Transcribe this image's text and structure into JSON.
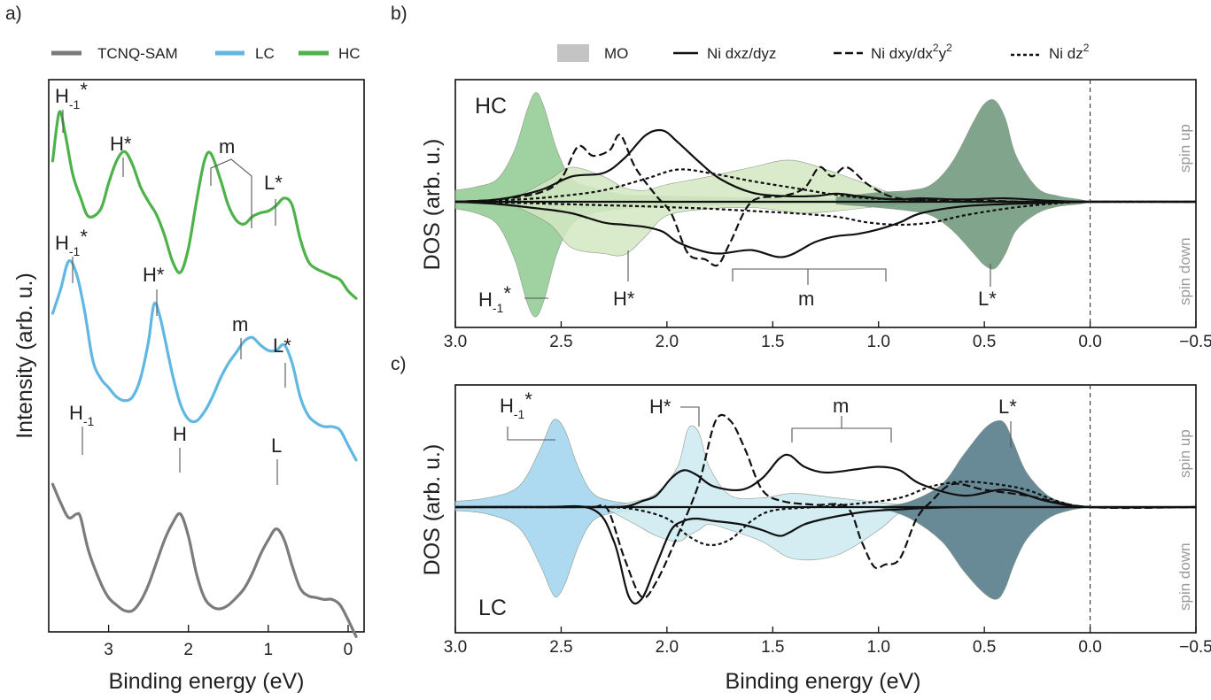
{
  "panel_labels": {
    "a": "a)",
    "b": "b)",
    "c": "c)"
  },
  "legend_a": [
    {
      "label": "TCNQ-SAM",
      "color": "#7b7b7b"
    },
    {
      "label": "LC",
      "color": "#5fb7e2"
    },
    {
      "label": "HC",
      "color": "#4db24a"
    }
  ],
  "legend_bc": {
    "mo": "MO",
    "dxz": "Ni dxz/dyz",
    "dxy_prefix": "Ni dxy/dx",
    "dxy_mid": "y",
    "dxy_sup": "2",
    "dz_prefix": "Ni dz",
    "dz_sup": "2"
  },
  "axes": {
    "xlabel": "Binding energy (eV)",
    "ylabel_a": "Intensity (arb. u.)",
    "ylabel_bc": "DOS (arb. u.)",
    "xticks_a": [
      "3",
      "2",
      "1",
      "0"
    ],
    "xticks_bc": [
      "3.0",
      "2.5",
      "2.0",
      "1.5",
      "1.0",
      "0.5",
      "0.0",
      "−0.5"
    ],
    "spin_up": "spin up",
    "spin_down": "spin down",
    "hc": "HC",
    "lc": "LC"
  },
  "peak_labels": {
    "h1_star_base": "H",
    "h1_star_sub": "-1",
    "h1_star_sup": "*",
    "h_star": "H*",
    "m": "m",
    "l_star": "L*",
    "h1_base": "H",
    "h1_sub": "-1",
    "h": "H",
    "l": "L"
  },
  "colors": {
    "hc": "#4db24a",
    "lc": "#5fb7e2",
    "sam": "#7b7b7b",
    "hc_fill1": "#8fc98f",
    "hc_fill2": "#d3e8c2",
    "hc_fill3": "#6b9478",
    "lc_fill1": "#9fd3ef",
    "lc_fill2": "#cdeaf1",
    "lc_fill3": "#4d7585"
  },
  "chart_data": [
    {
      "type": "line",
      "title": "",
      "xlabel": "Binding energy (eV)",
      "ylabel": "Intensity (arb. u.)",
      "xlim": [
        3.75,
        -0.2
      ],
      "x_reversed": true,
      "xticks": [
        3,
        2,
        1,
        0
      ],
      "legend": "top",
      "series": [
        {
          "name": "HC",
          "color": "#4db24a",
          "offset": 1.8,
          "x": [
            3.7,
            3.62,
            3.55,
            3.45,
            3.35,
            3.25,
            3.1,
            3.0,
            2.9,
            2.8,
            2.7,
            2.6,
            2.5,
            2.4,
            2.3,
            2.2,
            2.1,
            2.0,
            1.9,
            1.8,
            1.72,
            1.6,
            1.5,
            1.4,
            1.3,
            1.2,
            1.1,
            1.0,
            0.9,
            0.8,
            0.7,
            0.6,
            0.5,
            0.4,
            0.3,
            0.2,
            0.1,
            0.0,
            -0.1
          ],
          "y": [
            0.62,
            0.88,
            0.78,
            0.55,
            0.42,
            0.32,
            0.36,
            0.5,
            0.62,
            0.67,
            0.6,
            0.48,
            0.4,
            0.33,
            0.22,
            0.08,
            0.02,
            0.15,
            0.4,
            0.62,
            0.66,
            0.52,
            0.38,
            0.3,
            0.28,
            0.32,
            0.34,
            0.35,
            0.38,
            0.42,
            0.38,
            0.2,
            0.08,
            0.04,
            0.02,
            0.0,
            -0.02,
            -0.08,
            -0.12
          ]
        },
        {
          "name": "LC",
          "color": "#5fb7e2",
          "offset": 0.95,
          "x": [
            3.7,
            3.6,
            3.5,
            3.4,
            3.3,
            3.2,
            3.1,
            3.0,
            2.9,
            2.8,
            2.7,
            2.6,
            2.5,
            2.43,
            2.35,
            2.2,
            2.1,
            2.0,
            1.9,
            1.8,
            1.7,
            1.6,
            1.5,
            1.4,
            1.3,
            1.2,
            1.1,
            1.0,
            0.9,
            0.8,
            0.7,
            0.6,
            0.5,
            0.4,
            0.3,
            0.2,
            0.1,
            0.0,
            -0.1
          ],
          "y": [
            0.65,
            0.78,
            0.93,
            0.86,
            0.66,
            0.4,
            0.3,
            0.25,
            0.2,
            0.18,
            0.2,
            0.3,
            0.5,
            0.7,
            0.62,
            0.32,
            0.16,
            0.08,
            0.07,
            0.12,
            0.2,
            0.3,
            0.38,
            0.44,
            0.5,
            0.52,
            0.48,
            0.45,
            0.45,
            0.48,
            0.38,
            0.2,
            0.1,
            0.06,
            0.04,
            0.04,
            0.02,
            -0.06,
            -0.14
          ]
        },
        {
          "name": "TCNQ-SAM",
          "color": "#7b7b7b",
          "offset": 0.0,
          "x": [
            3.7,
            3.6,
            3.5,
            3.4,
            3.35,
            3.25,
            3.1,
            3.0,
            2.9,
            2.8,
            2.7,
            2.6,
            2.5,
            2.4,
            2.3,
            2.2,
            2.1,
            2.0,
            1.9,
            1.8,
            1.7,
            1.6,
            1.5,
            1.4,
            1.3,
            1.2,
            1.1,
            1.0,
            0.9,
            0.8,
            0.7,
            0.6,
            0.5,
            0.4,
            0.3,
            0.2,
            0.1,
            0.0,
            -0.1
          ],
          "y": [
            0.68,
            0.58,
            0.5,
            0.52,
            0.5,
            0.32,
            0.15,
            0.07,
            0.03,
            0.0,
            0.0,
            0.05,
            0.14,
            0.26,
            0.38,
            0.47,
            0.52,
            0.4,
            0.2,
            0.07,
            0.02,
            0.01,
            0.03,
            0.07,
            0.12,
            0.2,
            0.3,
            0.38,
            0.44,
            0.38,
            0.24,
            0.12,
            0.08,
            0.07,
            0.06,
            0.06,
            0.03,
            -0.05,
            -0.14
          ]
        }
      ]
    },
    {
      "type": "area",
      "panel": "HC",
      "xlabel": "Binding energy (eV)",
      "ylabel": "DOS (arb. u.)",
      "xlim": [
        3.0,
        -0.5
      ],
      "x_reversed": true,
      "ylim": [
        -1.0,
        1.0
      ],
      "xticks": [
        3.0,
        2.5,
        2.0,
        1.5,
        1.0,
        0.5,
        0.0,
        -0.5
      ],
      "vline_x": 0.0,
      "series": [
        {
          "name": "MO",
          "color": "#8fc98f",
          "x": [
            3.0,
            2.9,
            2.8,
            2.72,
            2.66,
            2.62,
            2.58,
            2.52,
            2.45,
            2.35,
            2.2,
            2.0,
            1.8,
            1.5,
            1.0,
            0.8
          ],
          "y_up": [
            0.1,
            0.13,
            0.2,
            0.45,
            0.8,
            0.95,
            0.82,
            0.45,
            0.2,
            0.12,
            0.06,
            0.05,
            0.04,
            0.03,
            0.02,
            0.0
          ],
          "y_down": [
            -0.06,
            -0.1,
            -0.2,
            -0.5,
            -0.88,
            -1.0,
            -0.85,
            -0.45,
            -0.2,
            -0.1,
            -0.06,
            -0.04,
            -0.03,
            -0.02,
            -0.01,
            0.0
          ]
        },
        {
          "name": "MO",
          "color": "#d3e8c2",
          "x": [
            2.7,
            2.55,
            2.45,
            2.3,
            2.2,
            2.1,
            2.0,
            1.8,
            1.6,
            1.45,
            1.35,
            1.2,
            1.05,
            0.9,
            0.75
          ],
          "y_up": [
            0.05,
            0.2,
            0.3,
            0.22,
            0.12,
            0.1,
            0.15,
            0.22,
            0.3,
            0.36,
            0.34,
            0.25,
            0.15,
            0.05,
            0.0
          ],
          "y_down": [
            -0.05,
            -0.2,
            -0.4,
            -0.45,
            -0.46,
            -0.3,
            -0.12,
            -0.06,
            -0.05,
            -0.08,
            -0.1,
            -0.08,
            -0.05,
            -0.02,
            0.0
          ]
        },
        {
          "name": "MO",
          "color": "#6b9478",
          "x": [
            1.2,
            1.0,
            0.85,
            0.75,
            0.65,
            0.55,
            0.5,
            0.45,
            0.4,
            0.35,
            0.25,
            0.15,
            0.05,
            0.0
          ],
          "y_up": [
            0.04,
            0.08,
            0.1,
            0.15,
            0.35,
            0.7,
            0.85,
            0.88,
            0.72,
            0.4,
            0.12,
            0.05,
            0.02,
            0.0
          ],
          "y_down": [
            -0.02,
            -0.05,
            -0.08,
            -0.12,
            -0.25,
            -0.45,
            -0.55,
            -0.58,
            -0.45,
            -0.25,
            -0.1,
            -0.04,
            -0.02,
            0.0
          ]
        },
        {
          "name": "Ni dxz/dyz",
          "style": "solid",
          "x": [
            3.0,
            2.8,
            2.6,
            2.45,
            2.3,
            2.2,
            2.1,
            2.02,
            1.95,
            1.85,
            1.75,
            1.6,
            1.45,
            1.3,
            1.2,
            1.1,
            1.0,
            0.9,
            0.8,
            0.6,
            0.4,
            0.2,
            0.0,
            -0.5
          ],
          "y_up": [
            0.0,
            0.02,
            0.1,
            0.22,
            0.25,
            0.38,
            0.58,
            0.62,
            0.52,
            0.35,
            0.2,
            0.08,
            0.05,
            0.05,
            0.07,
            0.05,
            0.03,
            0.02,
            0.03,
            0.02,
            0.03,
            0.01,
            0.0,
            0.0
          ],
          "y_down": [
            0.0,
            -0.02,
            -0.06,
            -0.1,
            -0.18,
            -0.2,
            -0.22,
            -0.26,
            -0.35,
            -0.42,
            -0.45,
            -0.42,
            -0.48,
            -0.35,
            -0.3,
            -0.28,
            -0.24,
            -0.18,
            -0.1,
            -0.04,
            -0.02,
            -0.01,
            0.0,
            0.0
          ]
        },
        {
          "name": "Ni dxy/dx2y2",
          "style": "dashed",
          "x": [
            3.0,
            2.8,
            2.6,
            2.5,
            2.42,
            2.35,
            2.27,
            2.22,
            2.15,
            2.05,
            1.98,
            1.9,
            1.82,
            1.76,
            1.7,
            1.6,
            1.45,
            1.35,
            1.28,
            1.22,
            1.15,
            1.05,
            0.95,
            0.85,
            0.7,
            0.5,
            0.3,
            0.0,
            -0.5
          ],
          "y_up": [
            0.0,
            0.02,
            0.08,
            0.2,
            0.48,
            0.4,
            0.45,
            0.58,
            0.3,
            0.05,
            -0.1,
            -0.45,
            -0.5,
            -0.55,
            -0.35,
            0.0,
            0.05,
            0.12,
            0.3,
            0.22,
            0.3,
            0.15,
            0.05,
            0.02,
            0.01,
            0.01,
            0.0,
            0.0,
            0.0
          ],
          "y_down": []
        },
        {
          "name": "Ni dz2",
          "style": "dotted",
          "x": [
            3.0,
            2.7,
            2.5,
            2.3,
            2.1,
            1.95,
            1.8,
            1.6,
            1.4,
            1.2,
            1.05,
            0.9,
            0.75,
            0.6,
            0.4,
            0.2,
            0.0,
            -0.5
          ],
          "y_up": [
            0.0,
            0.02,
            0.05,
            0.1,
            0.2,
            0.28,
            0.25,
            0.18,
            0.12,
            0.06,
            0.03,
            0.02,
            0.01,
            0.0,
            0.0,
            0.0,
            0.0,
            0.0
          ],
          "y_down": [
            0.0,
            -0.01,
            -0.02,
            -0.03,
            -0.04,
            -0.05,
            -0.06,
            -0.08,
            -0.1,
            -0.13,
            -0.18,
            -0.2,
            -0.18,
            -0.12,
            -0.06,
            -0.02,
            0.0,
            0.0
          ]
        }
      ]
    },
    {
      "type": "area",
      "panel": "LC",
      "xlabel": "Binding energy (eV)",
      "ylabel": "DOS (arb. u.)",
      "xlim": [
        3.0,
        -0.5
      ],
      "x_reversed": true,
      "ylim": [
        -1.0,
        1.0
      ],
      "xticks": [
        3.0,
        2.5,
        2.0,
        1.5,
        1.0,
        0.5,
        0.0,
        -0.5
      ],
      "vline_x": 0.0,
      "series": [
        {
          "name": "MO",
          "color": "#9fd3ef",
          "x": [
            3.0,
            2.85,
            2.7,
            2.6,
            2.55,
            2.52,
            2.48,
            2.42,
            2.35,
            2.25,
            2.1,
            2.0
          ],
          "y_up": [
            0.05,
            0.08,
            0.18,
            0.5,
            0.72,
            0.76,
            0.66,
            0.35,
            0.12,
            0.05,
            0.02,
            0.0
          ],
          "y_down": [
            -0.03,
            -0.06,
            -0.18,
            -0.5,
            -0.72,
            -0.78,
            -0.66,
            -0.35,
            -0.12,
            -0.05,
            -0.02,
            0.0
          ]
        },
        {
          "name": "MO",
          "color": "#cdeaf1",
          "x": [
            2.3,
            2.15,
            2.05,
            1.95,
            1.9,
            1.85,
            1.8,
            1.7,
            1.55,
            1.4,
            1.2,
            1.0,
            0.9,
            0.8
          ],
          "y_up": [
            0.0,
            0.05,
            0.12,
            0.35,
            0.68,
            0.65,
            0.35,
            0.1,
            0.08,
            0.12,
            0.08,
            0.04,
            0.02,
            0.0
          ],
          "y_down": [
            0.0,
            -0.15,
            -0.25,
            -0.3,
            -0.25,
            -0.2,
            -0.15,
            -0.2,
            -0.3,
            -0.45,
            -0.42,
            -0.2,
            -0.05,
            0.0
          ]
        },
        {
          "name": "MO",
          "color": "#4d7585",
          "x": [
            1.0,
            0.85,
            0.7,
            0.6,
            0.5,
            0.44,
            0.4,
            0.36,
            0.3,
            0.2,
            0.1,
            0.0
          ],
          "y_up": [
            0.0,
            0.05,
            0.2,
            0.45,
            0.68,
            0.75,
            0.72,
            0.55,
            0.3,
            0.1,
            0.03,
            0.0
          ],
          "y_down": [
            0.0,
            -0.1,
            -0.3,
            -0.55,
            -0.75,
            -0.8,
            -0.7,
            -0.5,
            -0.28,
            -0.1,
            -0.03,
            0.0
          ]
        },
        {
          "name": "Ni dxz/dyz",
          "style": "solid",
          "x": [
            3.0,
            2.6,
            2.35,
            2.25,
            2.18,
            2.12,
            2.05,
            1.98,
            1.92,
            1.86,
            1.78,
            1.65,
            1.55,
            1.47,
            1.42,
            1.35,
            1.25,
            1.1,
            1.0,
            0.9,
            0.8,
            0.6,
            0.4,
            0.2,
            0.0,
            -0.5
          ],
          "y_up": [
            0.0,
            0.0,
            0.0,
            0.0,
            0.01,
            0.05,
            0.1,
            0.25,
            0.32,
            0.28,
            0.18,
            0.15,
            0.25,
            0.42,
            0.45,
            0.35,
            0.3,
            0.33,
            0.35,
            0.32,
            0.2,
            0.1,
            0.15,
            0.05,
            0.0,
            0.0
          ],
          "y_down": [
            0.0,
            0.0,
            -0.02,
            -0.3,
            -0.78,
            -0.8,
            -0.5,
            -0.2,
            -0.12,
            -0.1,
            -0.12,
            -0.15,
            -0.2,
            -0.25,
            -0.22,
            -0.15,
            -0.1,
            -0.05,
            -0.03,
            -0.02,
            -0.01,
            0.0,
            0.0,
            0.0,
            0.0,
            0.0
          ]
        },
        {
          "name": "Ni dxy/dx2y2",
          "style": "dashed",
          "x": [
            3.0,
            2.5,
            2.35,
            2.28,
            2.2,
            2.12,
            2.05,
            1.95,
            1.85,
            1.77,
            1.7,
            1.63,
            1.55,
            1.45,
            1.3,
            1.15,
            1.08,
            1.02,
            0.97,
            0.9,
            0.82,
            0.75,
            0.65,
            0.5,
            0.3,
            0.0,
            -0.5
          ],
          "y_up": [
            0.0,
            0.0,
            0.0,
            -0.02,
            -0.45,
            -0.78,
            -0.65,
            -0.25,
            0.2,
            0.75,
            0.75,
            0.5,
            0.15,
            0.05,
            0.02,
            0.0,
            -0.3,
            -0.52,
            -0.5,
            -0.45,
            -0.1,
            0.05,
            0.2,
            0.15,
            0.1,
            0.0,
            0.0
          ],
          "y_down": []
        },
        {
          "name": "Ni dz2",
          "style": "dotted",
          "x": [
            3.0,
            2.5,
            2.3,
            2.15,
            2.0,
            1.9,
            1.8,
            1.7,
            1.6,
            1.5,
            1.3,
            1.1,
            0.9,
            0.75,
            0.6,
            0.45,
            0.3,
            0.15,
            0.0,
            -0.5
          ],
          "y_up": [
            0.0,
            0.0,
            0.0,
            -0.02,
            -0.1,
            -0.25,
            -0.33,
            -0.28,
            -0.12,
            -0.03,
            0.0,
            0.03,
            0.08,
            0.18,
            0.22,
            0.2,
            0.15,
            0.05,
            0.0,
            0.0
          ],
          "y_down": []
        }
      ]
    }
  ]
}
